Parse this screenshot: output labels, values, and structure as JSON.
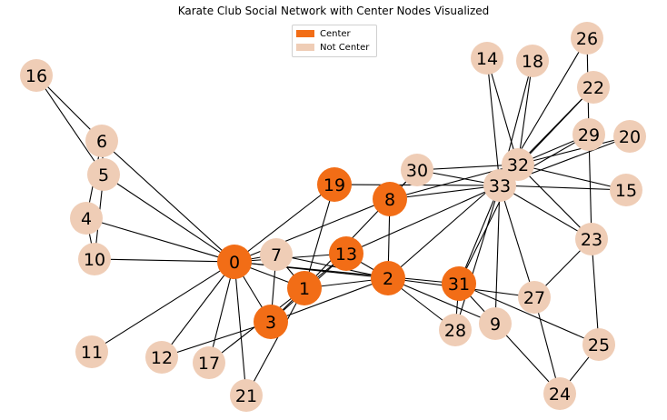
{
  "title": "Karate Club Social Network with Center Nodes Visualized",
  "legend": [
    {
      "label": "Center",
      "color": "#f26d16"
    },
    {
      "label": "Not Center",
      "color": "#efcdb6"
    }
  ],
  "colors": {
    "center": "#f26d16",
    "not_center": "#efcdb6",
    "edge": "#000000"
  },
  "center_nodes": [
    0,
    1,
    2,
    3,
    8,
    13,
    19,
    31
  ],
  "nodes": [
    0,
    1,
    2,
    3,
    4,
    5,
    6,
    7,
    8,
    9,
    10,
    11,
    12,
    13,
    14,
    15,
    16,
    17,
    18,
    19,
    20,
    21,
    22,
    23,
    24,
    25,
    26,
    27,
    28,
    29,
    30,
    31,
    32,
    33
  ],
  "edges": [
    [
      0,
      1
    ],
    [
      0,
      2
    ],
    [
      0,
      3
    ],
    [
      0,
      4
    ],
    [
      0,
      5
    ],
    [
      0,
      6
    ],
    [
      0,
      7
    ],
    [
      0,
      8
    ],
    [
      0,
      10
    ],
    [
      0,
      11
    ],
    [
      0,
      12
    ],
    [
      0,
      13
    ],
    [
      0,
      17
    ],
    [
      0,
      19
    ],
    [
      0,
      21
    ],
    [
      0,
      31
    ],
    [
      1,
      2
    ],
    [
      1,
      3
    ],
    [
      1,
      7
    ],
    [
      1,
      13
    ],
    [
      1,
      17
    ],
    [
      1,
      19
    ],
    [
      1,
      21
    ],
    [
      1,
      30
    ],
    [
      2,
      3
    ],
    [
      2,
      7
    ],
    [
      2,
      8
    ],
    [
      2,
      9
    ],
    [
      2,
      13
    ],
    [
      2,
      27
    ],
    [
      2,
      28
    ],
    [
      2,
      32
    ],
    [
      3,
      7
    ],
    [
      3,
      12
    ],
    [
      3,
      13
    ],
    [
      4,
      6
    ],
    [
      4,
      10
    ],
    [
      5,
      6
    ],
    [
      5,
      10
    ],
    [
      5,
      16
    ],
    [
      6,
      16
    ],
    [
      8,
      30
    ],
    [
      8,
      32
    ],
    [
      8,
      33
    ],
    [
      9,
      33
    ],
    [
      13,
      33
    ],
    [
      14,
      32
    ],
    [
      14,
      33
    ],
    [
      15,
      32
    ],
    [
      15,
      33
    ],
    [
      18,
      32
    ],
    [
      18,
      33
    ],
    [
      19,
      33
    ],
    [
      20,
      32
    ],
    [
      20,
      33
    ],
    [
      22,
      32
    ],
    [
      22,
      33
    ],
    [
      23,
      25
    ],
    [
      23,
      27
    ],
    [
      23,
      29
    ],
    [
      23,
      32
    ],
    [
      23,
      33
    ],
    [
      24,
      25
    ],
    [
      24,
      27
    ],
    [
      24,
      31
    ],
    [
      25,
      31
    ],
    [
      26,
      29
    ],
    [
      26,
      33
    ],
    [
      27,
      33
    ],
    [
      28,
      31
    ],
    [
      28,
      33
    ],
    [
      29,
      32
    ],
    [
      29,
      33
    ],
    [
      30,
      32
    ],
    [
      30,
      33
    ],
    [
      31,
      32
    ],
    [
      31,
      33
    ],
    [
      32,
      33
    ]
  ]
}
